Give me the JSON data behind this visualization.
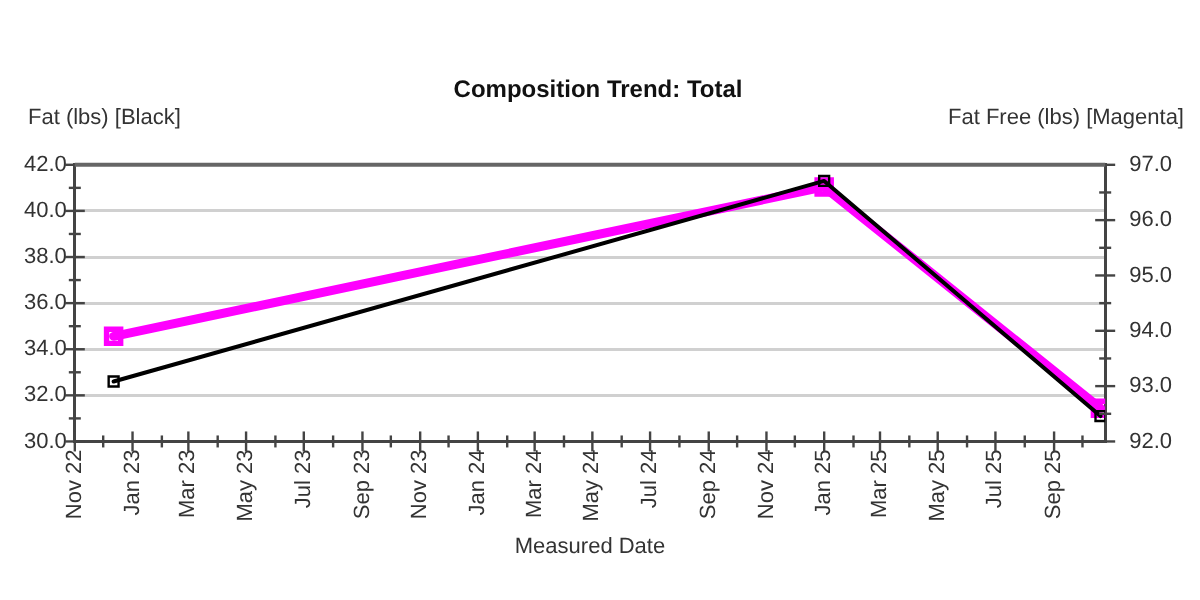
{
  "chart_data": {
    "type": "line",
    "title": "Composition Trend: Total",
    "xlabel": "Measured Date",
    "ylabel": "Fat (lbs) [Black]",
    "y2label": "Fat Free (lbs) [Magenta]",
    "x": [
      "2022-12-12",
      "2025-01-01",
      "2025-10-20"
    ],
    "series": [
      {
        "color": "#000000",
        "values": [
          32.6,
          41.3,
          31.1
        ]
      },
      {
        "color": "#ff00ff",
        "values": [
          93.9,
          96.6,
          92.6
        ],
        "axis": "y2"
      }
    ],
    "xlim": [
      "2022-11-01",
      "2025-10-25"
    ],
    "xticks": [
      {
        "value": "2022-11",
        "label": "Nov 22"
      },
      {
        "value": "2022-12",
        "label": null
      },
      {
        "value": "2023-01",
        "label": "Jan 23"
      },
      {
        "value": "2023-02",
        "label": null
      },
      {
        "value": "2023-03",
        "label": "Mar 23"
      },
      {
        "value": "2023-04",
        "label": null
      },
      {
        "value": "2023-05",
        "label": "May 23"
      },
      {
        "value": "2023-06",
        "label": null
      },
      {
        "value": "2023-07",
        "label": "Jul 23"
      },
      {
        "value": "2023-08",
        "label": null
      },
      {
        "value": "2023-09",
        "label": "Sep 23"
      },
      {
        "value": "2023-10",
        "label": null
      },
      {
        "value": "2023-11",
        "label": "Nov 23"
      },
      {
        "value": "2023-12",
        "label": null
      },
      {
        "value": "2024-01",
        "label": "Jan 24"
      },
      {
        "value": "2024-02",
        "label": null
      },
      {
        "value": "2024-03",
        "label": "Mar 24"
      },
      {
        "value": "2024-04",
        "label": null
      },
      {
        "value": "2024-05",
        "label": "May 24"
      },
      {
        "value": "2024-06",
        "label": null
      },
      {
        "value": "2024-07",
        "label": "Jul 24"
      },
      {
        "value": "2024-08",
        "label": null
      },
      {
        "value": "2024-09",
        "label": "Sep 24"
      },
      {
        "value": "2024-10",
        "label": null
      },
      {
        "value": "2024-11",
        "label": "Nov 24"
      },
      {
        "value": "2024-12",
        "label": null
      },
      {
        "value": "2025-01",
        "label": "Jan 25"
      },
      {
        "value": "2025-02",
        "label": null
      },
      {
        "value": "2025-03",
        "label": "Mar 25"
      },
      {
        "value": "2025-04",
        "label": null
      },
      {
        "value": "2025-05",
        "label": "May 25"
      },
      {
        "value": "2025-06",
        "label": null
      },
      {
        "value": "2025-07",
        "label": "Jul 25"
      },
      {
        "value": "2025-08",
        "label": null
      },
      {
        "value": "2025-09",
        "label": "Sep 25"
      },
      {
        "value": "2025-10",
        "label": null
      }
    ],
    "ylim": [
      30,
      42
    ],
    "yticks": [
      {
        "value": 30,
        "label": "30.0"
      },
      {
        "value": 31,
        "label": null
      },
      {
        "value": 32,
        "label": "32.0"
      },
      {
        "value": 33,
        "label": null
      },
      {
        "value": 34,
        "label": "34.0"
      },
      {
        "value": 35,
        "label": null
      },
      {
        "value": 36,
        "label": "36.0"
      },
      {
        "value": 37,
        "label": null
      },
      {
        "value": 38,
        "label": "38.0"
      },
      {
        "value": 39,
        "label": null
      },
      {
        "value": 40,
        "label": "40.0"
      },
      {
        "value": 41,
        "label": null
      },
      {
        "value": 42,
        "label": "42.0"
      }
    ],
    "y2lim": [
      92,
      97
    ],
    "y2ticks": [
      {
        "value": 92,
        "label": "92.0"
      },
      {
        "value": 92.5,
        "label": null
      },
      {
        "value": 93,
        "label": "93.0"
      },
      {
        "value": 93.5,
        "label": null
      },
      {
        "value": 94,
        "label": "94.0"
      },
      {
        "value": 94.5,
        "label": null
      },
      {
        "value": 95,
        "label": "95.0"
      },
      {
        "value": 95.5,
        "label": null
      },
      {
        "value": 96,
        "label": "96.0"
      },
      {
        "value": 96.5,
        "label": null
      },
      {
        "value": 97,
        "label": "97.0"
      }
    ],
    "grid": "y",
    "legend": false,
    "marker": "square",
    "line_style": "solid"
  }
}
